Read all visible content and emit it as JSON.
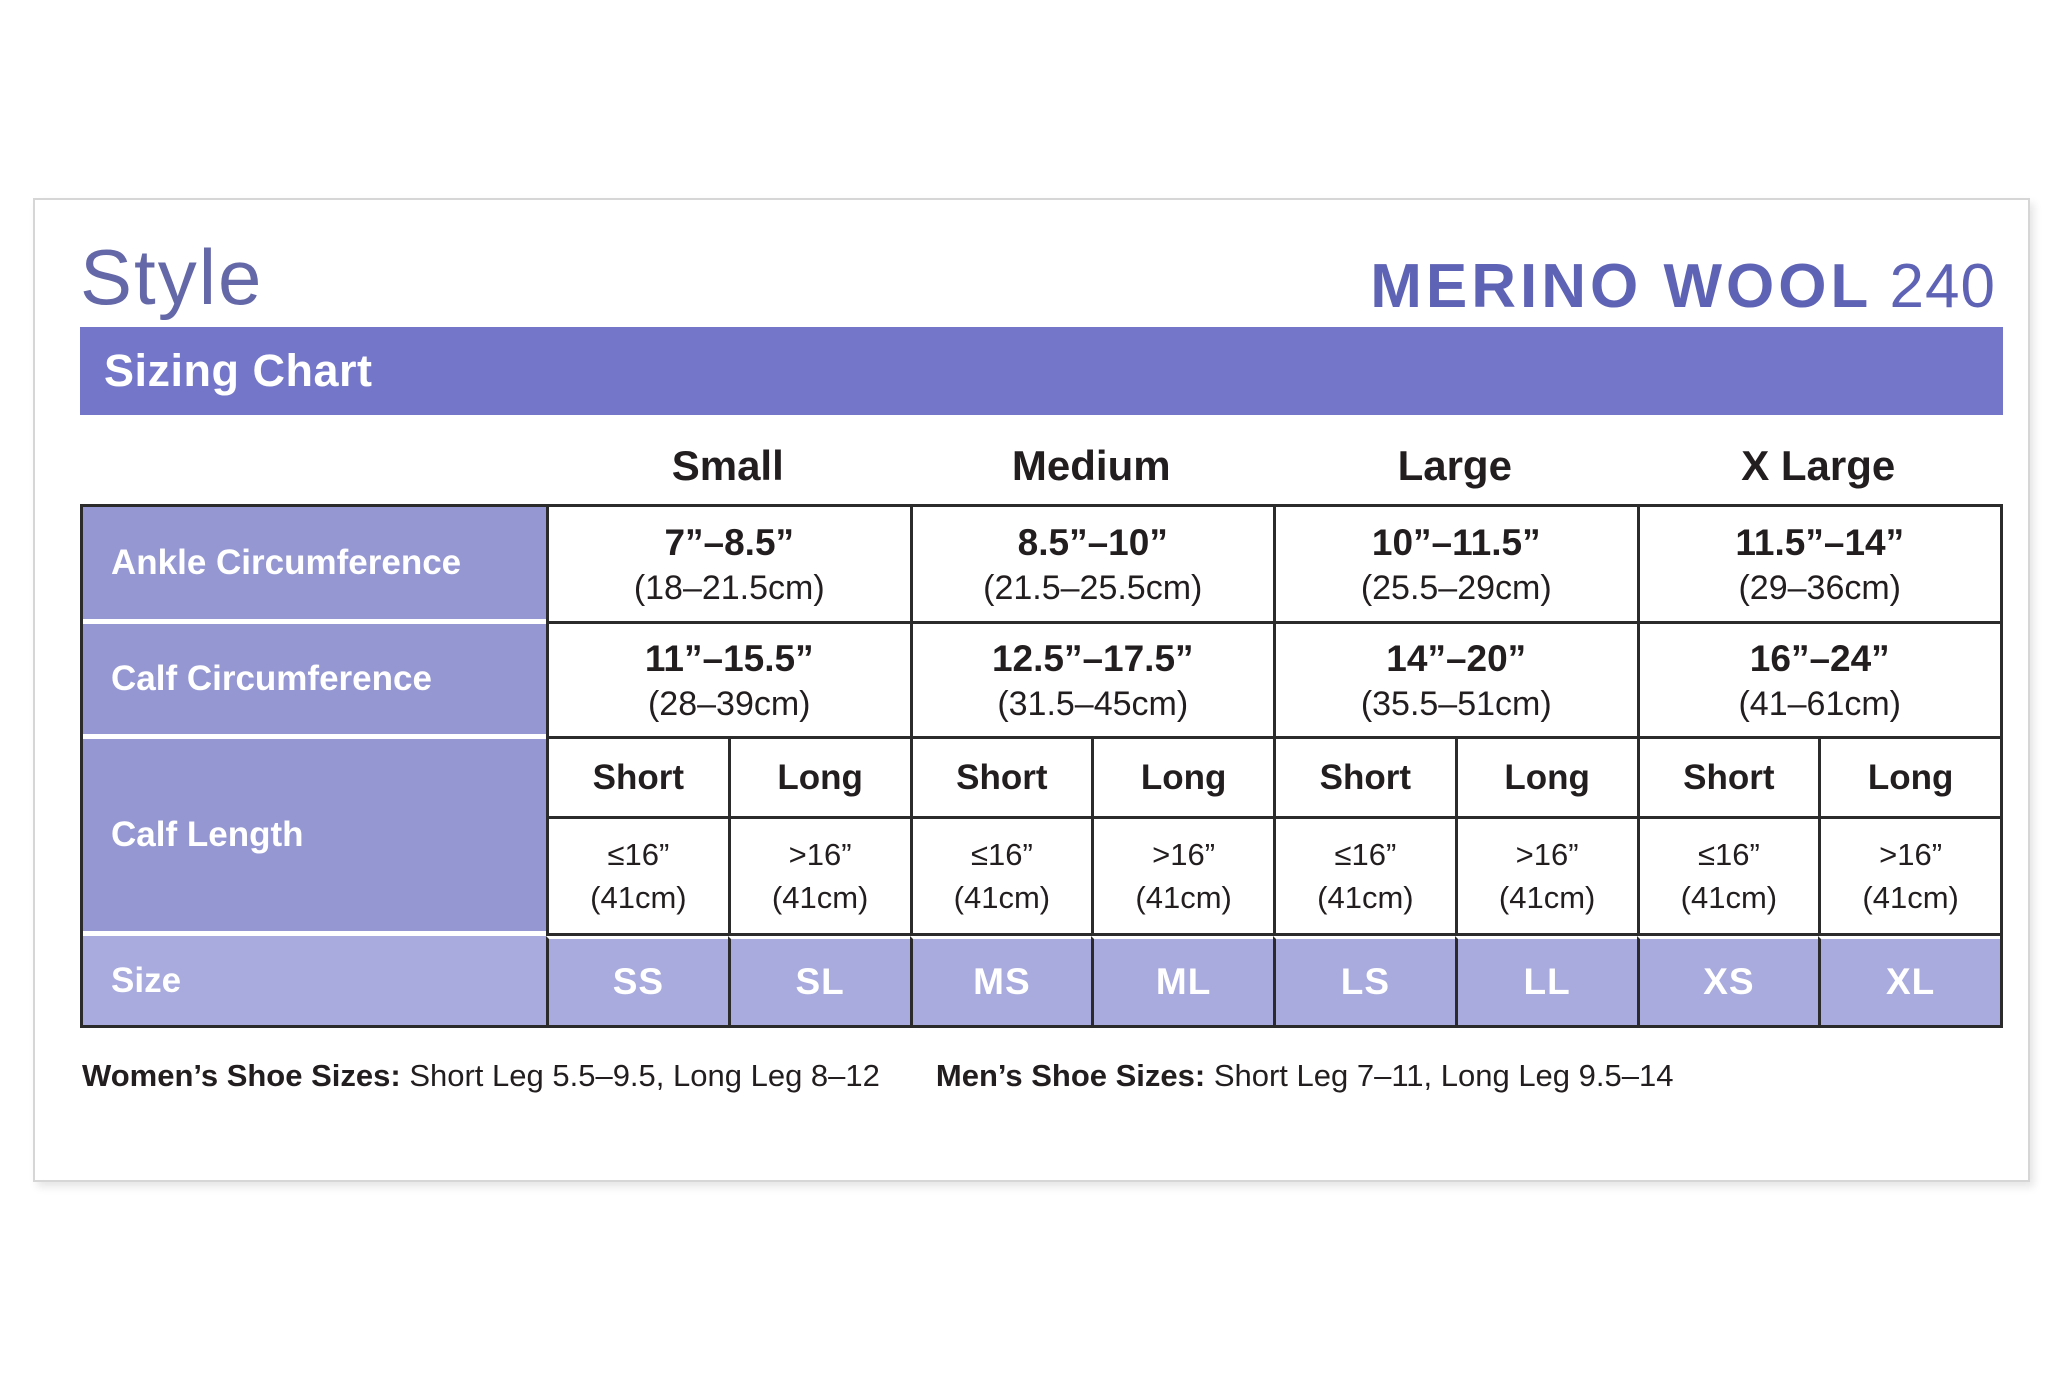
{
  "header": {
    "style_label": "Style",
    "brand_name": "MERINO WOOL",
    "brand_number": "240",
    "banner_title": "Sizing Chart"
  },
  "colors": {
    "banner_purple": "#7477C9",
    "row_header_purple": "#9597D3",
    "size_row_purple": "#A9ABDE",
    "brand_purple": "#5F63B5",
    "style_purple": "#6568A8",
    "border_dark": "#2B2B2B",
    "text_dark": "#221E1F",
    "card_border_gray": "#D6D6D6"
  },
  "table": {
    "size_headers": [
      "Small",
      "Medium",
      "Large",
      "X Large"
    ],
    "rows": [
      {
        "label": "Ankle Circumference",
        "cells": [
          {
            "inches": "7”–8.5”",
            "cm": "(18–21.5cm)"
          },
          {
            "inches": "8.5”–10”",
            "cm": "(21.5–25.5cm)"
          },
          {
            "inches": "10”–11.5”",
            "cm": "(25.5–29cm)"
          },
          {
            "inches": "11.5”–14”",
            "cm": "(29–36cm)"
          }
        ]
      },
      {
        "label": "Calf Circumference",
        "cells": [
          {
            "inches": "11”–15.5”",
            "cm": "(28–39cm)"
          },
          {
            "inches": "12.5”–17.5”",
            "cm": "(31.5–45cm)"
          },
          {
            "inches": "14”–20”",
            "cm": "(35.5–51cm)"
          },
          {
            "inches": "16”–24”",
            "cm": "(41–61cm)"
          }
        ]
      }
    ],
    "calf_length": {
      "label": "Calf Length",
      "sub_headers": [
        "Short",
        "Long",
        "Short",
        "Long",
        "Short",
        "Long",
        "Short",
        "Long"
      ],
      "values": [
        {
          "line1": "≤16”",
          "line2": "(41cm)"
        },
        {
          "line1": ">16”",
          "line2": "(41cm)"
        },
        {
          "line1": "≤16”",
          "line2": "(41cm)"
        },
        {
          "line1": ">16”",
          "line2": "(41cm)"
        },
        {
          "line1": "≤16”",
          "line2": "(41cm)"
        },
        {
          "line1": ">16”",
          "line2": "(41cm)"
        },
        {
          "line1": "≤16”",
          "line2": "(41cm)"
        },
        {
          "line1": ">16”",
          "line2": "(41cm)"
        }
      ]
    },
    "size_row": {
      "label": "Size",
      "codes": [
        "SS",
        "SL",
        "MS",
        "ML",
        "LS",
        "LL",
        "XS",
        "XL"
      ]
    }
  },
  "footnote": {
    "womens_label": "Women’s Shoe Sizes:",
    "womens_text": " Short Leg 5.5–9.5, Long Leg 8–12",
    "mens_label": "Men’s Shoe Sizes:",
    "mens_text": " Short Leg 7–11, Long Leg 9.5–14"
  },
  "chart_data": {
    "type": "table",
    "title": "Sizing Chart",
    "product_line": "MERINO WOOL 240",
    "columns": [
      "Small",
      "Medium",
      "Large",
      "X Large"
    ],
    "rows": [
      {
        "label": "Ankle Circumference",
        "values": [
          "7–8.5 in (18–21.5 cm)",
          "8.5–10 in (21.5–25.5 cm)",
          "10–11.5 in (25.5–29 cm)",
          "11.5–14 in (29–36 cm)"
        ]
      },
      {
        "label": "Calf Circumference",
        "values": [
          "11–15.5 in (28–39 cm)",
          "12.5–17.5 in (31.5–45 cm)",
          "14–20 in (35.5–51 cm)",
          "16–24 in (41–61 cm)"
        ]
      },
      {
        "label": "Calf Length",
        "values": [
          "Short ≤16 in (41 cm) / Long >16 in (41 cm)",
          "Short ≤16 in (41 cm) / Long >16 in (41 cm)",
          "Short ≤16 in (41 cm) / Long >16 in (41 cm)",
          "Short ≤16 in (41 cm) / Long >16 in (41 cm)"
        ]
      },
      {
        "label": "Size",
        "values": [
          "SS / SL",
          "MS / ML",
          "LS / LL",
          "XS / XL"
        ]
      }
    ],
    "notes": [
      "Women’s Shoe Sizes: Short Leg 5.5–9.5, Long Leg 8–12",
      "Men’s Shoe Sizes: Short Leg 7–11, Long Leg 9.5–14"
    ]
  }
}
